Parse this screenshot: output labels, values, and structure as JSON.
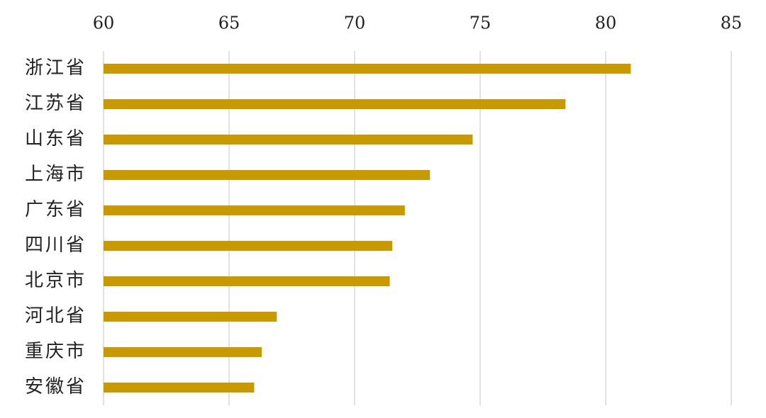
{
  "chart_data": {
    "type": "bar",
    "orientation": "horizontal",
    "categories": [
      "浙江省",
      "江苏省",
      "山东省",
      "上海市",
      "广东省",
      "四川省",
      "北京市",
      "河北省",
      "重庆市",
      "安徽省"
    ],
    "values": [
      81.0,
      78.4,
      74.7,
      73.0,
      72.0,
      71.5,
      71.4,
      66.9,
      66.3,
      66.0
    ],
    "color": "#c89a00",
    "xlim": [
      60,
      85
    ],
    "xticks": [
      60,
      65,
      70,
      75,
      80,
      85
    ],
    "grid": true
  }
}
